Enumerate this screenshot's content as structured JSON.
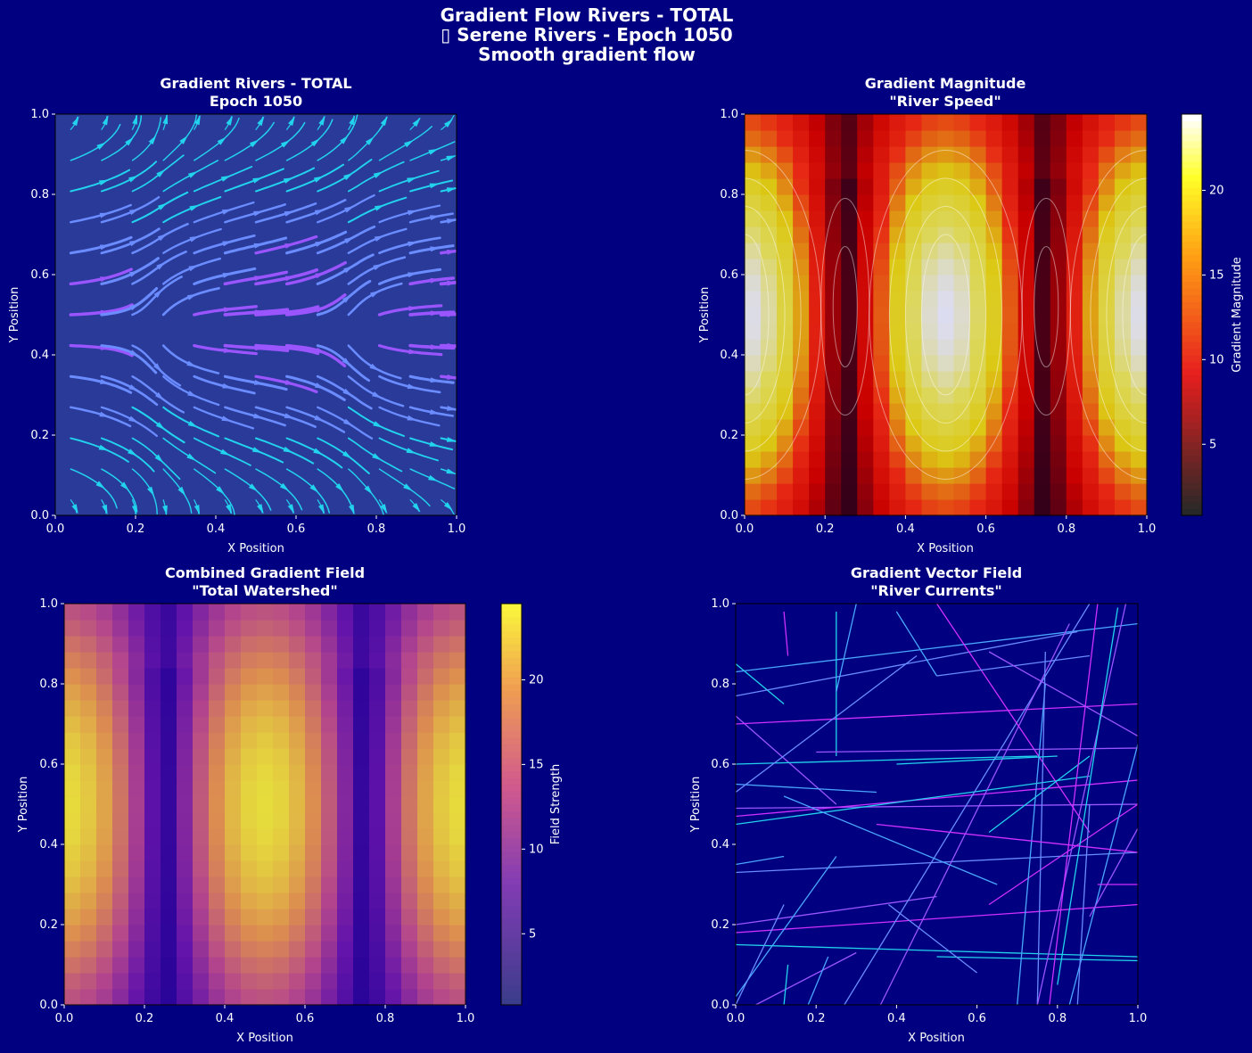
{
  "figure": {
    "suptitle_lines": [
      "Gradient Flow Rivers - TOTAL",
      "▯ Serene Rivers - Epoch 1050",
      "Smooth gradient flow"
    ],
    "background": "#000080"
  },
  "chart_data": [
    {
      "id": "streamplot",
      "type": "streamplot",
      "title_lines": [
        "Gradient Rivers - TOTAL",
        "Epoch 1050"
      ],
      "xlabel": "X Position",
      "ylabel": "Y Position",
      "xlim": [
        0,
        1
      ],
      "ylim": [
        0,
        1
      ],
      "xticks": [
        "0.0",
        "0.2",
        "0.4",
        "0.6",
        "0.8",
        "1.0"
      ],
      "yticks": [
        "0.0",
        "0.2",
        "0.4",
        "0.6",
        "0.8",
        "1.0"
      ],
      "colormap": [
        "#22d3ee",
        "#6a8cff",
        "#9a55ff",
        "#ff10ff"
      ],
      "field_function": "gx = 12 + 10*cos(4*pi*x)*... (approximate)"
    },
    {
      "id": "magnitude",
      "type": "heatmap",
      "title_lines": [
        "Gradient Magnitude",
        "\"River Speed\""
      ],
      "xlabel": "X Position",
      "ylabel": "Y Position",
      "xlim": [
        0,
        1
      ],
      "ylim": [
        0,
        1
      ],
      "xticks": [
        "0.0",
        "0.2",
        "0.4",
        "0.6",
        "0.8",
        "1.0"
      ],
      "yticks": [
        "0.0",
        "0.2",
        "0.4",
        "0.6",
        "0.8",
        "1.0"
      ],
      "colorbar_label": "Gradient Magnitude",
      "colorbar_ticks": [
        "5",
        "10",
        "15",
        "20"
      ],
      "colorbar_range": [
        0.8,
        24.5
      ],
      "colormap": "hot",
      "grid_size": 25
    },
    {
      "id": "combined",
      "type": "heatmap",
      "title_lines": [
        "Combined Gradient Field",
        "\"Total Watershed\""
      ],
      "xlabel": "X Position",
      "ylabel": "Y Position",
      "xlim": [
        0,
        1
      ],
      "ylim": [
        0,
        1
      ],
      "xticks": [
        "0.0",
        "0.2",
        "0.4",
        "0.6",
        "0.8",
        "1.0"
      ],
      "yticks": [
        "0.0",
        "0.2",
        "0.4",
        "0.6",
        "0.8",
        "1.0"
      ],
      "colorbar_label": "Field Strength",
      "colorbar_ticks": [
        "5",
        "10",
        "15",
        "20"
      ],
      "colorbar_range": [
        0.8,
        24.5
      ],
      "colormap": "plasma",
      "grid_size": 25
    },
    {
      "id": "vectors",
      "type": "line",
      "title_lines": [
        "Gradient Vector Field",
        "\"River Currents\""
      ],
      "xlabel": "X Position",
      "ylabel": "Y Position",
      "xlim": [
        0,
        1
      ],
      "ylim": [
        0,
        1
      ],
      "xticks": [
        "0.0",
        "0.2",
        "0.4",
        "0.6",
        "0.8",
        "1.0"
      ],
      "yticks": [
        "0.0",
        "0.2",
        "0.4",
        "0.6",
        "0.8",
        "1.0"
      ],
      "segment_colors": [
        "#22d3ee",
        "#4aa8ff",
        "#6a8cff",
        "#9a55ff",
        "#d030ff"
      ],
      "segments": [
        [
          0.0,
          0.85,
          0.12,
          0.75
        ],
        [
          0.0,
          0.83,
          1.0,
          0.95
        ],
        [
          0.0,
          0.77,
          0.85,
          0.93
        ],
        [
          0.0,
          0.72,
          0.25,
          0.5
        ],
        [
          0.0,
          0.7,
          1.0,
          0.75
        ],
        [
          0.0,
          0.6,
          0.75,
          0.62
        ],
        [
          0.0,
          0.55,
          0.35,
          0.53
        ],
        [
          0.0,
          0.53,
          0.45,
          0.87
        ],
        [
          0.0,
          0.49,
          1.0,
          0.5
        ],
        [
          0.0,
          0.47,
          1.0,
          0.56
        ],
        [
          0.0,
          0.45,
          0.88,
          0.57
        ],
        [
          0.0,
          0.35,
          0.12,
          0.37
        ],
        [
          0.0,
          0.33,
          1.0,
          0.38
        ],
        [
          0.0,
          0.2,
          0.5,
          0.27
        ],
        [
          0.0,
          0.18,
          1.0,
          0.25
        ],
        [
          0.0,
          0.15,
          1.0,
          0.12
        ],
        [
          0.0,
          0.02,
          0.25,
          0.37
        ],
        [
          0.0,
          0.0,
          0.12,
          0.25
        ],
        [
          0.05,
          0.0,
          0.3,
          0.13
        ],
        [
          0.12,
          0.98,
          0.13,
          0.87
        ],
        [
          0.25,
          0.98,
          0.25,
          0.62
        ],
        [
          0.3,
          1.0,
          0.25,
          0.78
        ],
        [
          0.27,
          0.0,
          0.88,
          1.0
        ],
        [
          0.36,
          0.0,
          0.83,
          0.95
        ],
        [
          0.5,
          1.0,
          0.88,
          0.43
        ],
        [
          0.5,
          0.12,
          1.0,
          0.11
        ],
        [
          0.4,
          0.98,
          0.5,
          0.82
        ],
        [
          0.5,
          0.82,
          0.88,
          0.87
        ],
        [
          0.63,
          0.88,
          1.0,
          0.67
        ],
        [
          0.63,
          0.25,
          1.0,
          0.5
        ],
        [
          0.63,
          0.43,
          0.88,
          0.62
        ],
        [
          0.7,
          0.0,
          0.77,
          0.8
        ],
        [
          0.75,
          0.0,
          0.77,
          0.88
        ],
        [
          0.75,
          0.0,
          0.97,
          1.0
        ],
        [
          0.78,
          0.0,
          0.9,
          1.0
        ],
        [
          0.8,
          0.05,
          0.95,
          0.99
        ],
        [
          0.83,
          0.0,
          1.0,
          0.65
        ],
        [
          0.85,
          0.0,
          0.88,
          0.5
        ],
        [
          0.88,
          0.22,
          1.0,
          0.44
        ],
        [
          0.9,
          0.3,
          1.0,
          0.3
        ],
        [
          0.12,
          0.0,
          0.13,
          0.1
        ],
        [
          0.18,
          0.0,
          0.23,
          0.12
        ],
        [
          0.38,
          0.25,
          0.6,
          0.08
        ],
        [
          0.2,
          0.63,
          1.0,
          0.64
        ],
        [
          0.35,
          0.45,
          1.0,
          0.38
        ],
        [
          0.4,
          0.6,
          0.8,
          0.62
        ],
        [
          0.12,
          0.52,
          0.65,
          0.3
        ]
      ]
    }
  ]
}
